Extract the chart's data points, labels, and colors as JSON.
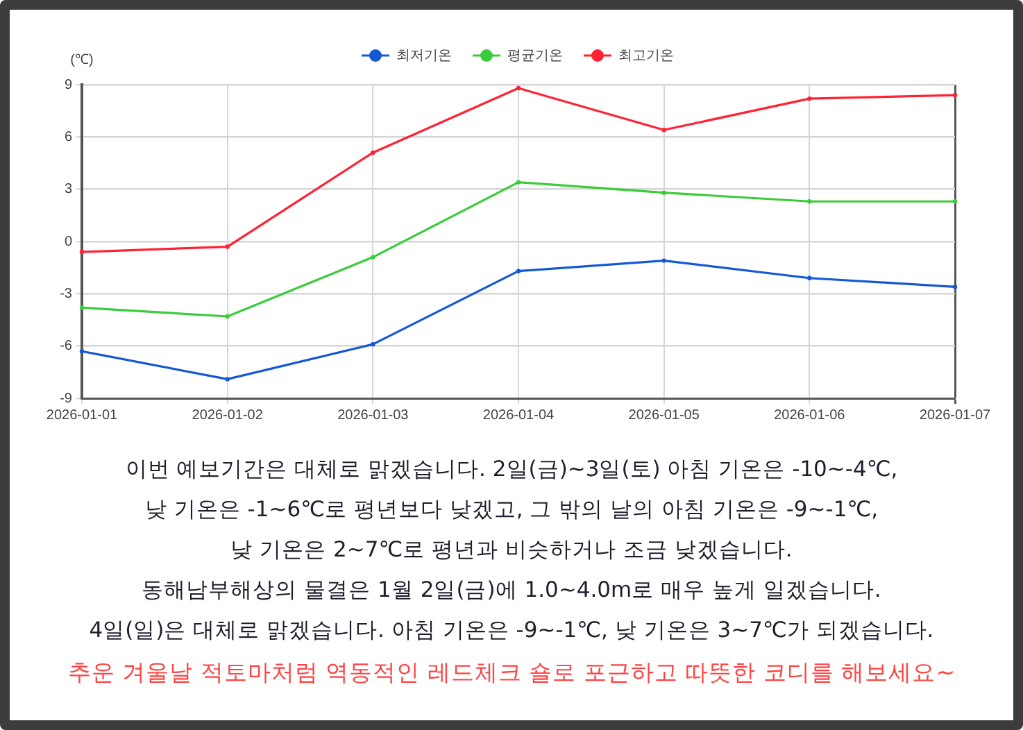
{
  "chart_data": {
    "type": "line",
    "ylabel": "(℃)",
    "categories": [
      "2026-01-01",
      "2026-01-02",
      "2026-01-03",
      "2026-01-04",
      "2026-01-05",
      "2026-01-06",
      "2026-01-07"
    ],
    "series": [
      {
        "name": "최저기온",
        "color": "#1558d6",
        "values": [
          -6.3,
          -7.9,
          -5.9,
          -1.7,
          -1.1,
          -2.1,
          -2.6
        ]
      },
      {
        "name": "평균기온",
        "color": "#3acc3a",
        "values": [
          -3.8,
          -4.3,
          -0.9,
          3.4,
          2.8,
          2.3,
          2.3
        ]
      },
      {
        "name": "최고기온",
        "color": "#ff2233",
        "values": [
          -0.6,
          -0.3,
          5.1,
          8.8,
          6.4,
          8.2,
          8.4
        ]
      }
    ],
    "ylim": [
      -9,
      9
    ],
    "yticks": [
      -9,
      -6,
      -3,
      0,
      3,
      6,
      9
    ],
    "grid": true,
    "legend": "top",
    "marker": "circle",
    "line_style": "solid",
    "annotations": [
      "이번 예보기간은 대체로 맑겠습니다. 2일(금)~3일(토) 아침 기온은 -10~-4℃,",
      "낮 기온은 -1~6℃로 평년보다 낮겠고, 그 밖의 날의 아침 기온은 -9~-1℃,",
      "낮 기온은 2~7℃로 평년과 비슷하거나 조금 낮겠습니다.",
      "동해남부해상의 물결은 1월 2일(금)에 1.0~4.0m로 매우 높게 일겠습니다.",
      "4일(일)은 대체로 맑겠습니다. 아침 기온은 -9~-1℃, 낮 기온은 3~7℃가 되겠습니다.",
      "추운 겨울날 적토마처럼 역동적인 레드체크 숄로 포근하고 따뜻한 코디를 해보세요~"
    ]
  }
}
